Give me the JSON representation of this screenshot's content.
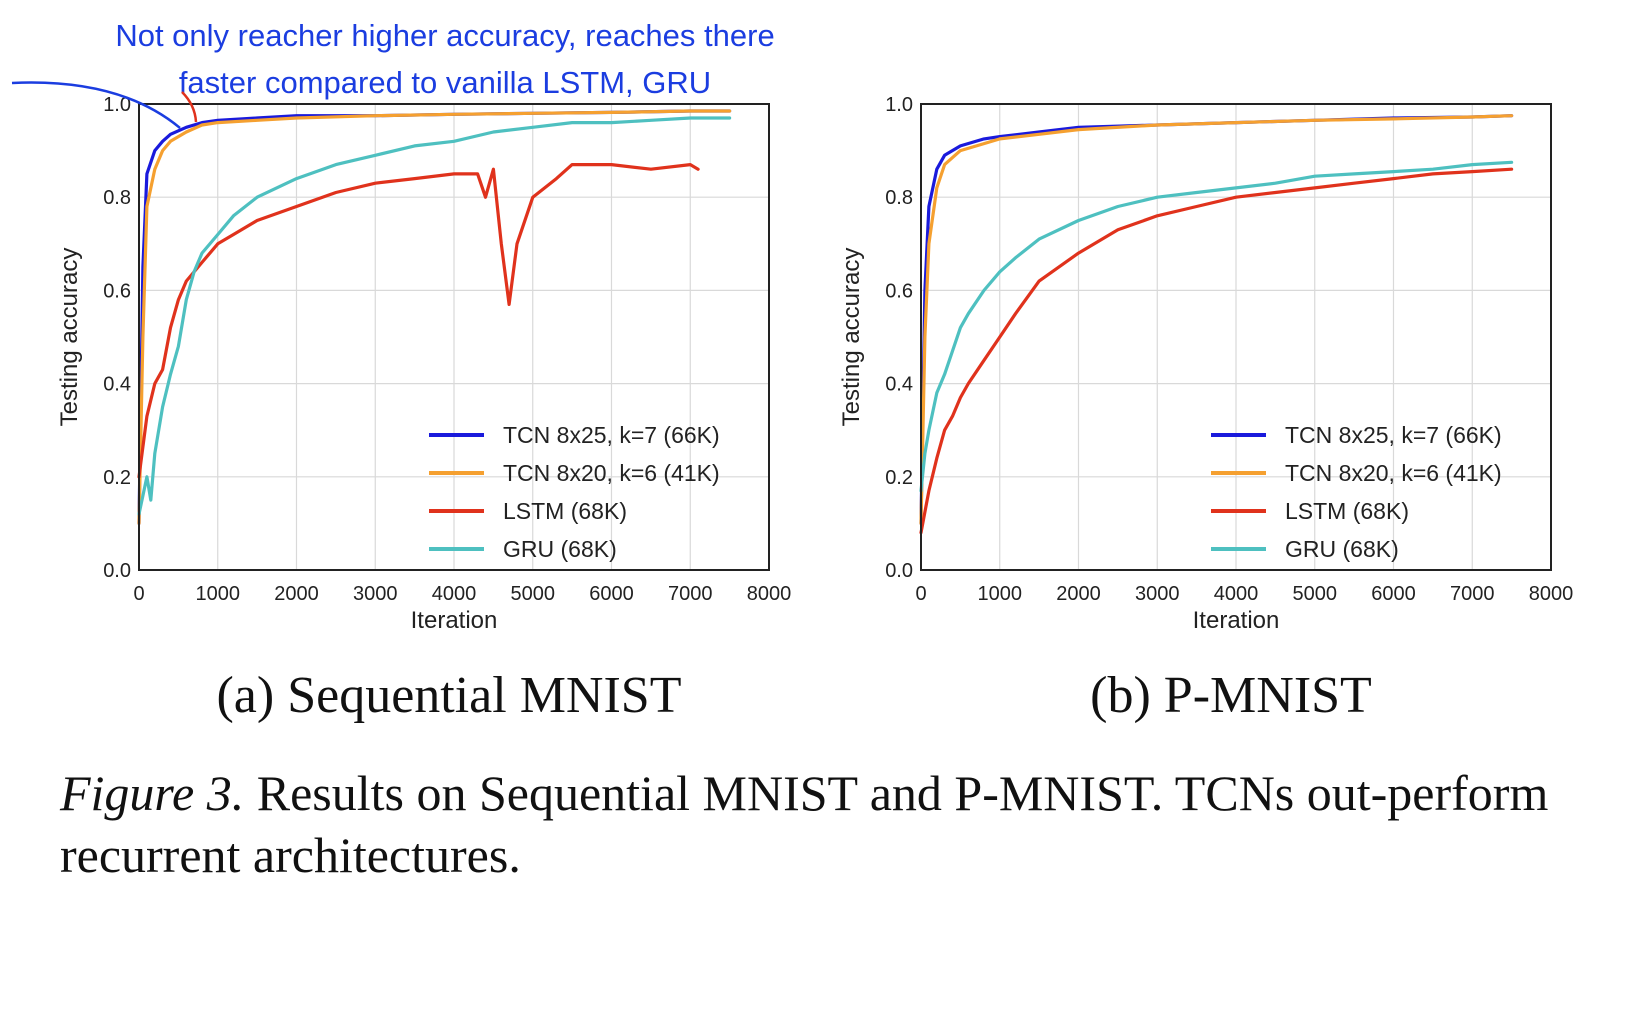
{
  "annotation": {
    "line1": "Not only reacher higher accuracy, reaches there",
    "line2": "faster compared to vanilla LSTM, GRU",
    "color": "#1b3de0",
    "arrow_color": "#e0321c"
  },
  "caption": {
    "label": "Figure 3.",
    "text": " Results on Sequential MNIST and P-MNIST. TCNs out-perform recurrent architectures."
  },
  "chart_data": [
    {
      "type": "line",
      "subtitle": "(a) Sequential MNIST",
      "xlabel": "Iteration",
      "ylabel": "Testing accuracy",
      "xlim": [
        0,
        8000
      ],
      "ylim": [
        0.0,
        1.0
      ],
      "xticks": [
        "0",
        "1000",
        "2000",
        "3000",
        "4000",
        "5000",
        "6000",
        "7000",
        "8000"
      ],
      "yticks": [
        "0.0",
        "0.2",
        "0.4",
        "0.6",
        "0.8",
        "1.0"
      ],
      "grid": true,
      "legend_position": "bottom-right",
      "series": [
        {
          "name": "TCN 8x25, k=7 (66K)",
          "color": "#1a1adc",
          "x": [
            0,
            50,
            100,
            200,
            300,
            400,
            600,
            800,
            1000,
            1500,
            2000,
            3000,
            4000,
            5000,
            6000,
            7000,
            7500
          ],
          "y": [
            0.1,
            0.65,
            0.85,
            0.9,
            0.92,
            0.935,
            0.95,
            0.96,
            0.965,
            0.97,
            0.975,
            0.975,
            0.978,
            0.98,
            0.982,
            0.985,
            0.985
          ]
        },
        {
          "name": "TCN 8x20, k=6 (41K)",
          "color": "#f5a030",
          "x": [
            0,
            50,
            100,
            200,
            300,
            400,
            600,
            800,
            1000,
            1500,
            2000,
            3000,
            4000,
            5000,
            6000,
            7000,
            7500
          ],
          "y": [
            0.1,
            0.5,
            0.78,
            0.86,
            0.9,
            0.92,
            0.94,
            0.955,
            0.96,
            0.965,
            0.97,
            0.975,
            0.978,
            0.98,
            0.982,
            0.985,
            0.985
          ]
        },
        {
          "name": "LSTM (68K)",
          "color": "#e0321c",
          "x": [
            0,
            100,
            200,
            300,
            400,
            500,
            600,
            800,
            1000,
            1200,
            1500,
            2000,
            2500,
            3000,
            3500,
            4000,
            4300,
            4400,
            4500,
            4600,
            4700,
            4800,
            5000,
            5300,
            5500,
            6000,
            6500,
            7000,
            7100
          ],
          "y": [
            0.2,
            0.33,
            0.4,
            0.43,
            0.52,
            0.58,
            0.62,
            0.66,
            0.7,
            0.72,
            0.75,
            0.78,
            0.81,
            0.83,
            0.84,
            0.85,
            0.85,
            0.8,
            0.86,
            0.7,
            0.57,
            0.7,
            0.8,
            0.84,
            0.87,
            0.87,
            0.86,
            0.87,
            0.86
          ]
        },
        {
          "name": "GRU (68K)",
          "color": "#4ec0c0",
          "x": [
            0,
            100,
            150,
            200,
            300,
            400,
            500,
            600,
            700,
            800,
            1000,
            1200,
            1500,
            2000,
            2500,
            3000,
            3500,
            4000,
            4500,
            5000,
            5500,
            6000,
            6500,
            7000,
            7500
          ],
          "y": [
            0.12,
            0.2,
            0.15,
            0.25,
            0.35,
            0.42,
            0.48,
            0.58,
            0.64,
            0.68,
            0.72,
            0.76,
            0.8,
            0.84,
            0.87,
            0.89,
            0.91,
            0.92,
            0.94,
            0.95,
            0.96,
            0.96,
            0.965,
            0.97,
            0.97
          ]
        }
      ]
    },
    {
      "type": "line",
      "subtitle": "(b) P-MNIST",
      "xlabel": "Iteration",
      "ylabel": "Testing accuracy",
      "xlim": [
        0,
        8000
      ],
      "ylim": [
        0.0,
        1.0
      ],
      "xticks": [
        "0",
        "1000",
        "2000",
        "3000",
        "4000",
        "5000",
        "6000",
        "7000",
        "8000"
      ],
      "yticks": [
        "0.0",
        "0.2",
        "0.4",
        "0.6",
        "0.8",
        "1.0"
      ],
      "grid": true,
      "legend_position": "bottom-right",
      "series": [
        {
          "name": "TCN 8x25, k=7 (66K)",
          "color": "#1a1adc",
          "x": [
            0,
            50,
            100,
            200,
            300,
            500,
            800,
            1000,
            1500,
            2000,
            3000,
            4000,
            5000,
            6000,
            7000,
            7500
          ],
          "y": [
            0.1,
            0.6,
            0.78,
            0.86,
            0.89,
            0.91,
            0.925,
            0.93,
            0.94,
            0.95,
            0.955,
            0.96,
            0.965,
            0.97,
            0.972,
            0.975
          ]
        },
        {
          "name": "TCN 8x20, k=6 (41K)",
          "color": "#f5a030",
          "x": [
            0,
            50,
            100,
            200,
            300,
            500,
            800,
            1000,
            1500,
            2000,
            3000,
            4000,
            5000,
            6000,
            7000,
            7500
          ],
          "y": [
            0.1,
            0.5,
            0.7,
            0.82,
            0.87,
            0.9,
            0.915,
            0.925,
            0.935,
            0.945,
            0.955,
            0.96,
            0.965,
            0.968,
            0.972,
            0.975
          ]
        },
        {
          "name": "LSTM (68K)",
          "color": "#e0321c",
          "x": [
            0,
            100,
            200,
            300,
            400,
            500,
            600,
            800,
            1000,
            1200,
            1500,
            2000,
            2500,
            3000,
            3500,
            4000,
            4500,
            5000,
            5500,
            6000,
            6500,
            7000,
            7500
          ],
          "y": [
            0.08,
            0.17,
            0.24,
            0.3,
            0.33,
            0.37,
            0.4,
            0.45,
            0.5,
            0.55,
            0.62,
            0.68,
            0.73,
            0.76,
            0.78,
            0.8,
            0.81,
            0.82,
            0.83,
            0.84,
            0.85,
            0.855,
            0.86
          ]
        },
        {
          "name": "GRU (68K)",
          "color": "#4ec0c0",
          "x": [
            0,
            50,
            100,
            200,
            300,
            400,
            500,
            600,
            800,
            1000,
            1200,
            1500,
            2000,
            2500,
            3000,
            3500,
            4000,
            4500,
            5000,
            5500,
            6000,
            6500,
            7000,
            7500
          ],
          "y": [
            0.17,
            0.25,
            0.3,
            0.38,
            0.42,
            0.47,
            0.52,
            0.55,
            0.6,
            0.64,
            0.67,
            0.71,
            0.75,
            0.78,
            0.8,
            0.81,
            0.82,
            0.83,
            0.845,
            0.85,
            0.855,
            0.86,
            0.87,
            0.875
          ]
        }
      ]
    }
  ]
}
